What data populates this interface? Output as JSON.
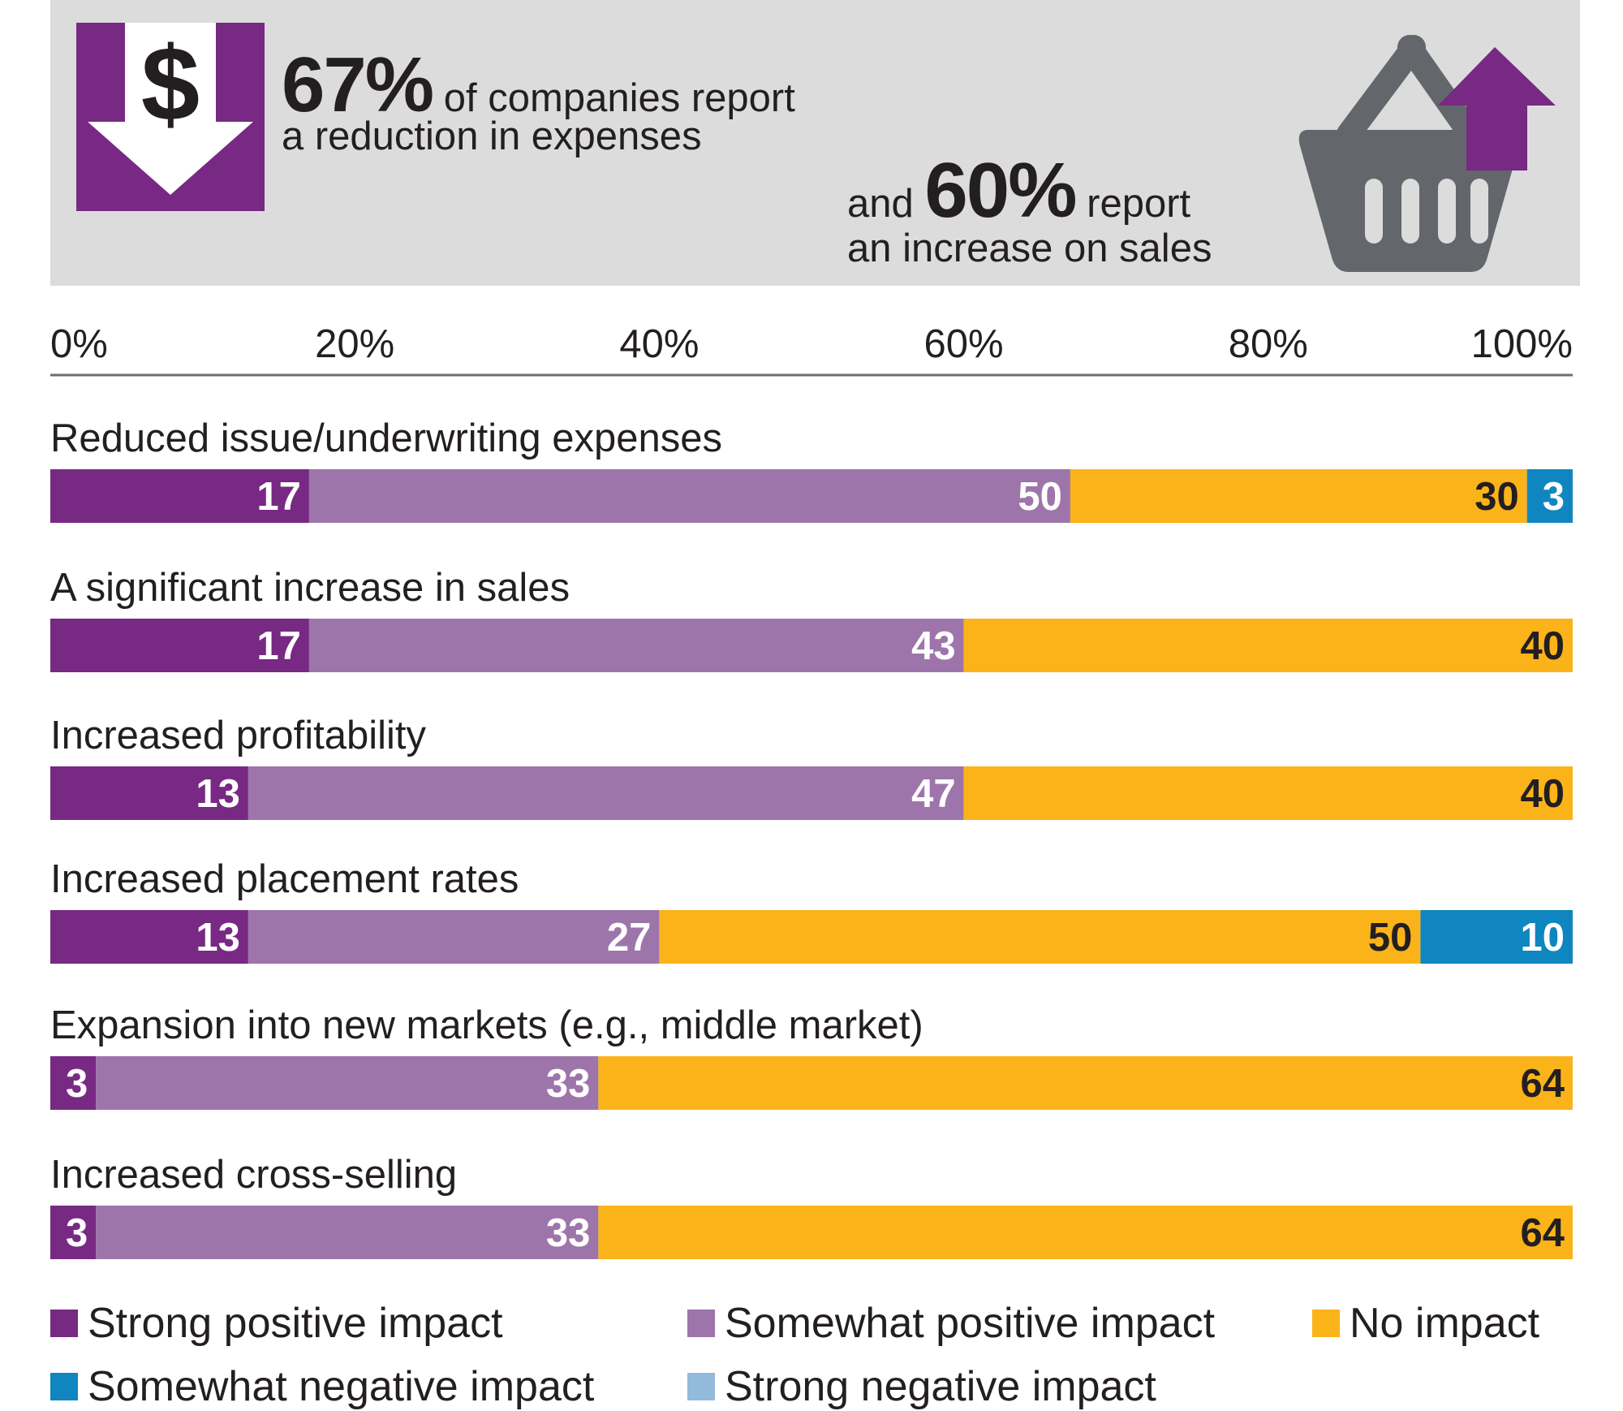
{
  "banner": {
    "stat1_number": "67%",
    "stat1_text": "of companies report",
    "stat1_line2": "a reduction in expenses",
    "stat2_prefix": "and",
    "stat2_number": "60%",
    "stat2_text": "report",
    "stat2_line2": "an increase on sales",
    "dollar_glyph": "$",
    "icon_expense": "dollar-down-arrow-icon",
    "icon_sales": "basket-up-arrow-icon"
  },
  "colors": {
    "strong_positive": "#772983",
    "somewhat_positive": "#9e75ab",
    "no_impact": "#fbb31a",
    "somewhat_negative": "#0f86bf",
    "strong_negative": "#93b9db",
    "banner_bg": "#dcdcdc",
    "basket": "#63666a"
  },
  "chart_data": {
    "type": "bar",
    "orientation": "horizontal-stacked",
    "x_ticks": [
      "0%",
      "20%",
      "40%",
      "60%",
      "80%",
      "100%"
    ],
    "xlim": [
      0,
      100
    ],
    "categories": [
      "Reduced issue/underwriting expenses",
      "A significant increase in sales",
      "Increased profitability",
      "Increased placement rates",
      "Expansion into new markets (e.g., middle market)",
      "Increased cross-selling"
    ],
    "series": [
      {
        "name": "Strong positive impact",
        "values": [
          17,
          17,
          13,
          13,
          3,
          3
        ]
      },
      {
        "name": "Somewhat positive impact",
        "values": [
          50,
          43,
          47,
          27,
          33,
          33
        ]
      },
      {
        "name": "No impact",
        "values": [
          30,
          40,
          40,
          50,
          64,
          64
        ]
      },
      {
        "name": "Somewhat negative impact",
        "values": [
          3,
          0,
          0,
          10,
          0,
          0
        ]
      },
      {
        "name": "Strong negative impact",
        "values": [
          0,
          0,
          0,
          0,
          0,
          0
        ]
      }
    ],
    "legend_position": "bottom",
    "grid": false
  }
}
